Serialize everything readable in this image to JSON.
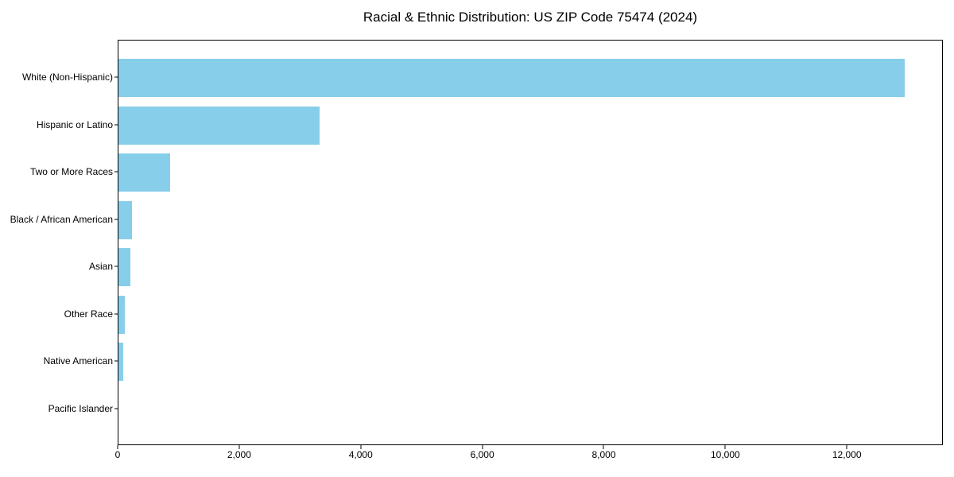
{
  "chart_data": {
    "type": "bar",
    "orientation": "horizontal",
    "title": "Racial & Ethnic Distribution: US ZIP Code 75474 (2024)",
    "categories": [
      "White (Non-Hispanic)",
      "Hispanic or Latino",
      "Two or More Races",
      "Black / African American",
      "Asian",
      "Other Race",
      "Native American",
      "Pacific Islander"
    ],
    "values": [
      12940,
      3305,
      845,
      220,
      190,
      110,
      75,
      0
    ],
    "xlabel": "",
    "ylabel": "",
    "xlim": [
      0,
      13580
    ],
    "x_ticks": [
      0,
      2000,
      4000,
      6000,
      8000,
      10000,
      12000
    ],
    "x_tick_labels": [
      "0",
      "2,000",
      "4,000",
      "6,000",
      "8,000",
      "10,000",
      "12,000"
    ],
    "bar_color": "#87CEEB",
    "background_color": "#ffffff",
    "frame_color": "#000000",
    "grid": false,
    "legend": null
  }
}
